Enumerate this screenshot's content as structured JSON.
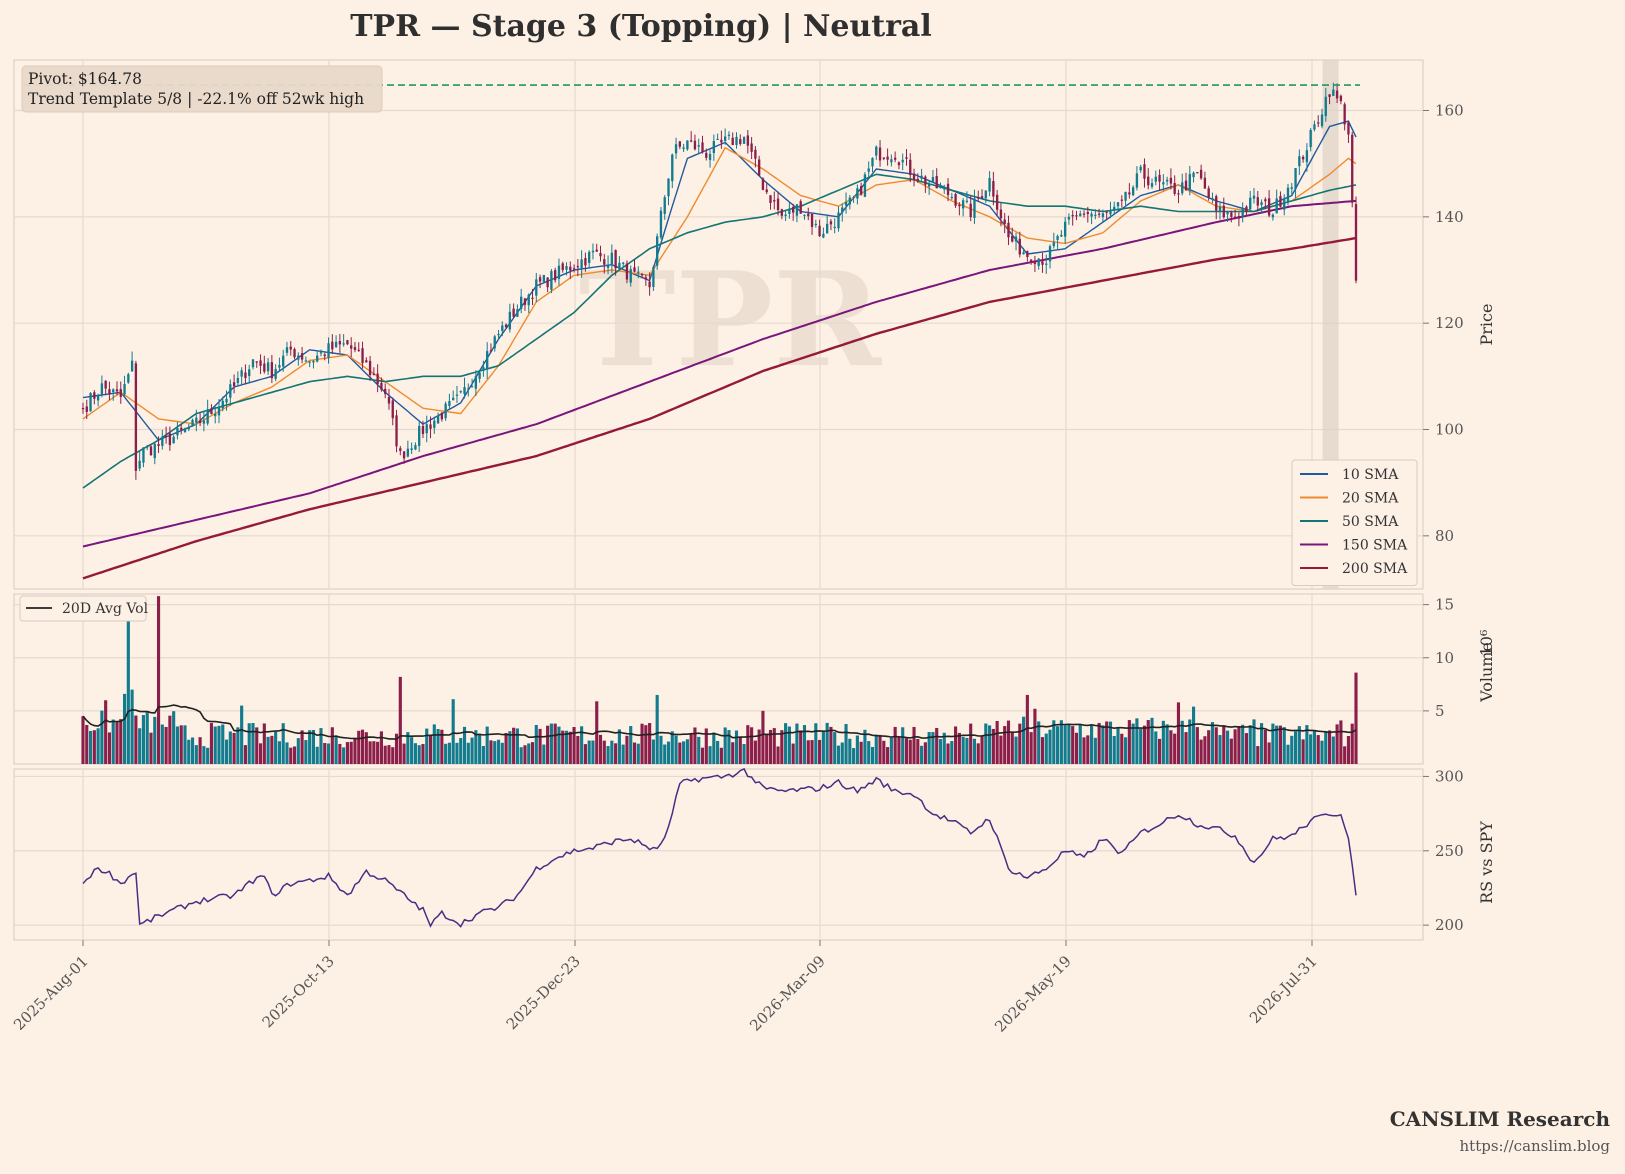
{
  "chart_data": {
    "type": "candlestick",
    "title": "TPR  —  Stage 3 (Topping)  |  Neutral",
    "watermark": "TPR",
    "info_box": {
      "line1": "Pivot: $164.78",
      "line2": "Trend Template 5/8  |  -22.1% off 52wk high"
    },
    "pivot": 164.78,
    "x_ticks": [
      "2025-Aug-01",
      "2025-Oct-13",
      "2025-Dec-23",
      "2026-Mar-09",
      "2026-May-19",
      "2026-Jul-31"
    ],
    "price_panel": {
      "ylabel": "Price",
      "yticks": [
        80,
        100,
        120,
        140,
        160
      ],
      "ylim": [
        70,
        169.5
      ]
    },
    "volume_panel": {
      "ylabel": "Volume",
      "exponent_label": "10⁶",
      "yticks": [
        5,
        10,
        15
      ],
      "ylim": [
        0,
        16
      ]
    },
    "rs_panel": {
      "ylabel": "RS vs SPY",
      "yticks": [
        200,
        250,
        300
      ],
      "ylim": [
        190,
        305
      ]
    },
    "legend": {
      "placement": "lower-right",
      "items": [
        {
          "label": "10 SMA",
          "color": "#1f5aa0"
        },
        {
          "label": "20 SMA",
          "color": "#f08a2c"
        },
        {
          "label": "50 SMA",
          "color": "#137574"
        },
        {
          "label": "150 SMA",
          "color": "#7a157c"
        },
        {
          "label": "200 SMA",
          "color": "#951a3a"
        }
      ]
    },
    "volume_legend": {
      "label": "20D Avg Vol",
      "color": "#222222",
      "placement": "upper-left"
    },
    "colors": {
      "up": "#137b8e",
      "down": "#8b1f4a",
      "pivot_line": "#1f9a55",
      "rs_line": "#4a2d82",
      "grid": "#e6d9cf",
      "highlight": "#ddd0c4"
    },
    "price_anchors": [
      [
        0,
        104
      ],
      [
        5,
        108
      ],
      [
        10,
        106
      ],
      [
        13,
        112
      ],
      [
        14,
        93
      ],
      [
        16,
        96
      ],
      [
        20,
        97
      ],
      [
        25,
        99
      ],
      [
        30,
        101
      ],
      [
        35,
        104
      ],
      [
        40,
        108
      ],
      [
        45,
        113
      ],
      [
        50,
        111
      ],
      [
        55,
        115
      ],
      [
        60,
        113
      ],
      [
        65,
        115
      ],
      [
        70,
        116
      ],
      [
        75,
        112
      ],
      [
        80,
        107
      ],
      [
        84,
        95
      ],
      [
        90,
        100
      ],
      [
        95,
        103
      ],
      [
        100,
        106
      ],
      [
        105,
        112
      ],
      [
        110,
        118
      ],
      [
        115,
        123
      ],
      [
        120,
        127
      ],
      [
        125,
        129
      ],
      [
        130,
        131
      ],
      [
        135,
        133
      ],
      [
        140,
        132
      ],
      [
        145,
        129
      ],
      [
        150,
        127
      ],
      [
        153,
        140
      ],
      [
        156,
        152
      ],
      [
        160,
        154
      ],
      [
        165,
        152
      ],
      [
        170,
        154
      ],
      [
        175,
        155
      ],
      [
        180,
        146
      ],
      [
        185,
        140
      ],
      [
        190,
        142
      ],
      [
        195,
        137
      ],
      [
        200,
        140
      ],
      [
        205,
        144
      ],
      [
        210,
        152
      ],
      [
        215,
        152
      ],
      [
        220,
        148
      ],
      [
        225,
        146
      ],
      [
        230,
        144
      ],
      [
        235,
        141
      ],
      [
        240,
        147
      ],
      [
        245,
        136
      ],
      [
        250,
        133
      ],
      [
        255,
        132
      ],
      [
        260,
        138
      ],
      [
        265,
        141
      ],
      [
        270,
        140
      ],
      [
        275,
        142
      ],
      [
        280,
        148
      ],
      [
        285,
        146
      ],
      [
        290,
        145
      ],
      [
        295,
        148
      ],
      [
        300,
        141
      ],
      [
        305,
        140
      ],
      [
        310,
        143
      ],
      [
        315,
        141
      ],
      [
        320,
        147
      ],
      [
        325,
        155
      ],
      [
        330,
        164
      ],
      [
        333,
        161
      ],
      [
        335,
        156
      ],
      [
        337,
        128
      ]
    ],
    "sma_anchors": {
      "sma10": [
        [
          0,
          106
        ],
        [
          10,
          107
        ],
        [
          20,
          98
        ],
        [
          30,
          101
        ],
        [
          40,
          108
        ],
        [
          50,
          110
        ],
        [
          60,
          115
        ],
        [
          70,
          114
        ],
        [
          80,
          107
        ],
        [
          90,
          101
        ],
        [
          100,
          105
        ],
        [
          110,
          117
        ],
        [
          120,
          127
        ],
        [
          130,
          130
        ],
        [
          140,
          131
        ],
        [
          150,
          128
        ],
        [
          156,
          142
        ],
        [
          160,
          151
        ],
        [
          170,
          154
        ],
        [
          180,
          147
        ],
        [
          190,
          141
        ],
        [
          200,
          140
        ],
        [
          210,
          149
        ],
        [
          220,
          148
        ],
        [
          230,
          145
        ],
        [
          240,
          142
        ],
        [
          250,
          133
        ],
        [
          260,
          134
        ],
        [
          270,
          139
        ],
        [
          280,
          144
        ],
        [
          290,
          146
        ],
        [
          300,
          143
        ],
        [
          310,
          141
        ],
        [
          320,
          144
        ],
        [
          330,
          157
        ],
        [
          335,
          158
        ],
        [
          337,
          155
        ]
      ],
      "sma20": [
        [
          0,
          102
        ],
        [
          10,
          107
        ],
        [
          20,
          102
        ],
        [
          30,
          101
        ],
        [
          40,
          105
        ],
        [
          50,
          108
        ],
        [
          60,
          113
        ],
        [
          70,
          114
        ],
        [
          80,
          109
        ],
        [
          90,
          104
        ],
        [
          100,
          103
        ],
        [
          110,
          112
        ],
        [
          120,
          124
        ],
        [
          130,
          129
        ],
        [
          140,
          130
        ],
        [
          150,
          129
        ],
        [
          160,
          140
        ],
        [
          170,
          153
        ],
        [
          180,
          149
        ],
        [
          190,
          144
        ],
        [
          200,
          142
        ],
        [
          210,
          146
        ],
        [
          220,
          147
        ],
        [
          230,
          143
        ],
        [
          240,
          140
        ],
        [
          250,
          136
        ],
        [
          260,
          135
        ],
        [
          270,
          137
        ],
        [
          280,
          143
        ],
        [
          290,
          146
        ],
        [
          300,
          142
        ],
        [
          310,
          141
        ],
        [
          320,
          143
        ],
        [
          330,
          148
        ],
        [
          335,
          151
        ],
        [
          337,
          150
        ]
      ],
      "sma50": [
        [
          0,
          89
        ],
        [
          10,
          94
        ],
        [
          20,
          98
        ],
        [
          30,
          103
        ],
        [
          40,
          105
        ],
        [
          50,
          107
        ],
        [
          60,
          109
        ],
        [
          70,
          110
        ],
        [
          80,
          109
        ],
        [
          90,
          110
        ],
        [
          100,
          110
        ],
        [
          110,
          112
        ],
        [
          120,
          117
        ],
        [
          130,
          122
        ],
        [
          140,
          129
        ],
        [
          150,
          134
        ],
        [
          160,
          137
        ],
        [
          170,
          139
        ],
        [
          180,
          140
        ],
        [
          190,
          142
        ],
        [
          200,
          145
        ],
        [
          210,
          148
        ],
        [
          220,
          147
        ],
        [
          230,
          145
        ],
        [
          240,
          143
        ],
        [
          250,
          142
        ],
        [
          260,
          142
        ],
        [
          270,
          141
        ],
        [
          280,
          142
        ],
        [
          290,
          141
        ],
        [
          300,
          141
        ],
        [
          310,
          141
        ],
        [
          320,
          143
        ],
        [
          330,
          145
        ],
        [
          337,
          146
        ]
      ],
      "sma150": [
        [
          0,
          78
        ],
        [
          30,
          83
        ],
        [
          60,
          88
        ],
        [
          90,
          95
        ],
        [
          120,
          101
        ],
        [
          150,
          109
        ],
        [
          180,
          117
        ],
        [
          210,
          124
        ],
        [
          240,
          130
        ],
        [
          270,
          134
        ],
        [
          300,
          139
        ],
        [
          320,
          142
        ],
        [
          337,
          143
        ]
      ],
      "sma200": [
        [
          0,
          72
        ],
        [
          30,
          79
        ],
        [
          60,
          85
        ],
        [
          90,
          90
        ],
        [
          120,
          95
        ],
        [
          150,
          102
        ],
        [
          180,
          111
        ],
        [
          210,
          118
        ],
        [
          240,
          124
        ],
        [
          270,
          128
        ],
        [
          300,
          132
        ],
        [
          320,
          134
        ],
        [
          337,
          136
        ]
      ]
    },
    "volume_spikes": [
      [
        0,
        4.5
      ],
      [
        6,
        6.0
      ],
      [
        11,
        6.6
      ],
      [
        12,
        13.5
      ],
      [
        13,
        7.0
      ],
      [
        20,
        15.8
      ],
      [
        42,
        5.5
      ],
      [
        84,
        8.2
      ],
      [
        98,
        6.1
      ],
      [
        136,
        5.9
      ],
      [
        152,
        6.5
      ],
      [
        180,
        5.0
      ],
      [
        216,
        2.5
      ],
      [
        250,
        6.5
      ],
      [
        252,
        5.2
      ],
      [
        290,
        5.8
      ],
      [
        294,
        5.4
      ],
      [
        310,
        4.2
      ],
      [
        333,
        4.1
      ],
      [
        337,
        8.6
      ]
    ],
    "rs_anchors": [
      [
        0,
        228
      ],
      [
        3,
        237
      ],
      [
        6,
        237
      ],
      [
        10,
        228
      ],
      [
        14,
        236
      ],
      [
        15,
        200
      ],
      [
        20,
        206
      ],
      [
        30,
        216
      ],
      [
        40,
        220
      ],
      [
        45,
        230
      ],
      [
        48,
        233
      ],
      [
        50,
        220
      ],
      [
        55,
        228
      ],
      [
        60,
        230
      ],
      [
        65,
        233
      ],
      [
        70,
        220
      ],
      [
        75,
        236
      ],
      [
        80,
        230
      ],
      [
        85,
        220
      ],
      [
        90,
        210
      ],
      [
        92,
        200
      ],
      [
        95,
        208
      ],
      [
        100,
        201
      ],
      [
        105,
        208
      ],
      [
        110,
        212
      ],
      [
        115,
        220
      ],
      [
        120,
        238
      ],
      [
        125,
        245
      ],
      [
        130,
        250
      ],
      [
        135,
        252
      ],
      [
        140,
        256
      ],
      [
        145,
        258
      ],
      [
        150,
        252
      ],
      [
        152,
        250
      ],
      [
        155,
        265
      ],
      [
        158,
        295
      ],
      [
        162,
        298
      ],
      [
        170,
        300
      ],
      [
        175,
        304
      ],
      [
        180,
        292
      ],
      [
        185,
        290
      ],
      [
        195,
        292
      ],
      [
        200,
        296
      ],
      [
        205,
        290
      ],
      [
        210,
        298
      ],
      [
        215,
        290
      ],
      [
        220,
        288
      ],
      [
        225,
        275
      ],
      [
        230,
        270
      ],
      [
        235,
        262
      ],
      [
        240,
        272
      ],
      [
        245,
        238
      ],
      [
        250,
        232
      ],
      [
        255,
        238
      ],
      [
        260,
        250
      ],
      [
        265,
        245
      ],
      [
        270,
        258
      ],
      [
        275,
        248
      ],
      [
        280,
        262
      ],
      [
        285,
        268
      ],
      [
        290,
        275
      ],
      [
        295,
        268
      ],
      [
        300,
        265
      ],
      [
        305,
        260
      ],
      [
        310,
        242
      ],
      [
        315,
        258
      ],
      [
        320,
        260
      ],
      [
        325,
        270
      ],
      [
        330,
        275
      ],
      [
        333,
        275
      ],
      [
        335,
        260
      ],
      [
        337,
        220
      ]
    ]
  },
  "footer": {
    "brand": "CANSLIM Research",
    "url": "https://canslim.blog"
  }
}
